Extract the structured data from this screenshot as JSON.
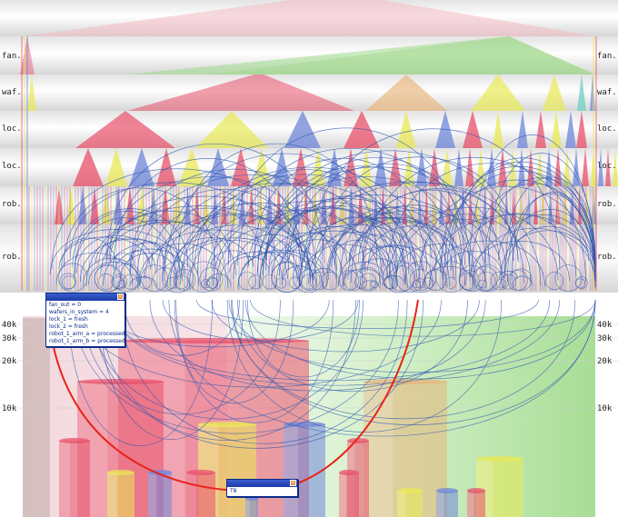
{
  "chart_data": {
    "type": "bar",
    "lane_labels": [
      "fan.",
      "waf.",
      "loc.",
      "loc.",
      "rob.",
      "rob."
    ],
    "y_ticks": [
      "40k",
      "30k",
      "20k",
      "10k"
    ],
    "colors": {
      "red": "#e8506a",
      "yellow": "#eaea55",
      "blue": "#6f86d8",
      "orange": "#e6b47a",
      "green": "#9ed88a",
      "cyan": "#6ccfc4",
      "arc": "#2c56b0",
      "highlight": "#e8231a"
    }
  },
  "state_popup": {
    "lines": [
      "fan_out = 0",
      "wafers_in_system = 4",
      "lock_1 = fresh",
      "lock_2 = fresh",
      "robot_1_arm_a = processed",
      "robot_1_arm_b = processed"
    ],
    "close_glyph": "×"
  },
  "target_popup": {
    "label": "T8",
    "close_glyph": "×"
  }
}
